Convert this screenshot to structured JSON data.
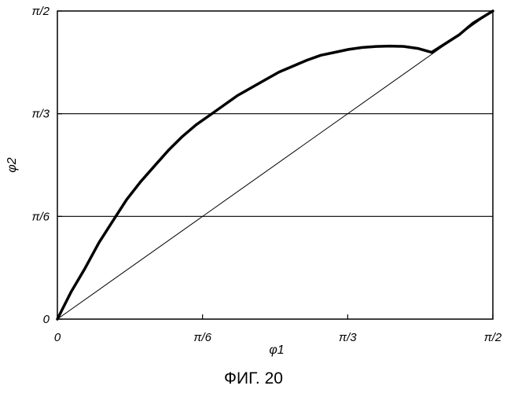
{
  "chart_data": {
    "type": "line",
    "title": "",
    "xlabel": "φ1",
    "ylabel": "φ2",
    "xlim": [
      0,
      1.5708
    ],
    "ylim": [
      0,
      1.5708
    ],
    "x_ticks": [
      {
        "value": 0,
        "label": "0"
      },
      {
        "value": 0.5236,
        "label": "π/6"
      },
      {
        "value": 1.0472,
        "label": "π/3"
      },
      {
        "value": 1.5708,
        "label": "π/2"
      }
    ],
    "y_ticks": [
      {
        "value": 0,
        "label": "0"
      },
      {
        "value": 0.5236,
        "label": "π/6"
      },
      {
        "value": 1.0472,
        "label": "π/3"
      },
      {
        "value": 1.5708,
        "label": "π/2"
      }
    ],
    "horizontal_gridlines": [
      0.5236,
      1.0472
    ],
    "series": [
      {
        "style": "thick",
        "x": [
          0,
          0.05,
          0.1,
          0.15,
          0.2,
          0.25,
          0.3,
          0.35,
          0.4,
          0.45,
          0.5,
          0.55,
          0.6,
          0.65,
          0.7,
          0.75,
          0.8,
          0.85,
          0.9,
          0.95,
          1.0,
          1.05,
          1.1,
          1.15,
          1.2,
          1.25,
          1.3,
          1.35,
          1.4,
          1.45,
          1.5,
          1.5708
        ],
        "y": [
          0,
          0.14,
          0.26,
          0.39,
          0.5,
          0.61,
          0.7,
          0.78,
          0.86,
          0.93,
          0.99,
          1.04,
          1.09,
          1.14,
          1.18,
          1.22,
          1.26,
          1.29,
          1.32,
          1.345,
          1.36,
          1.375,
          1.385,
          1.39,
          1.392,
          1.39,
          1.38,
          1.36,
          1.405,
          1.45,
          1.51,
          1.5708
        ]
      },
      {
        "style": "thin",
        "x": [
          0,
          1.5708
        ],
        "y": [
          0,
          1.5708
        ]
      }
    ]
  },
  "caption": "ФИГ. 20"
}
